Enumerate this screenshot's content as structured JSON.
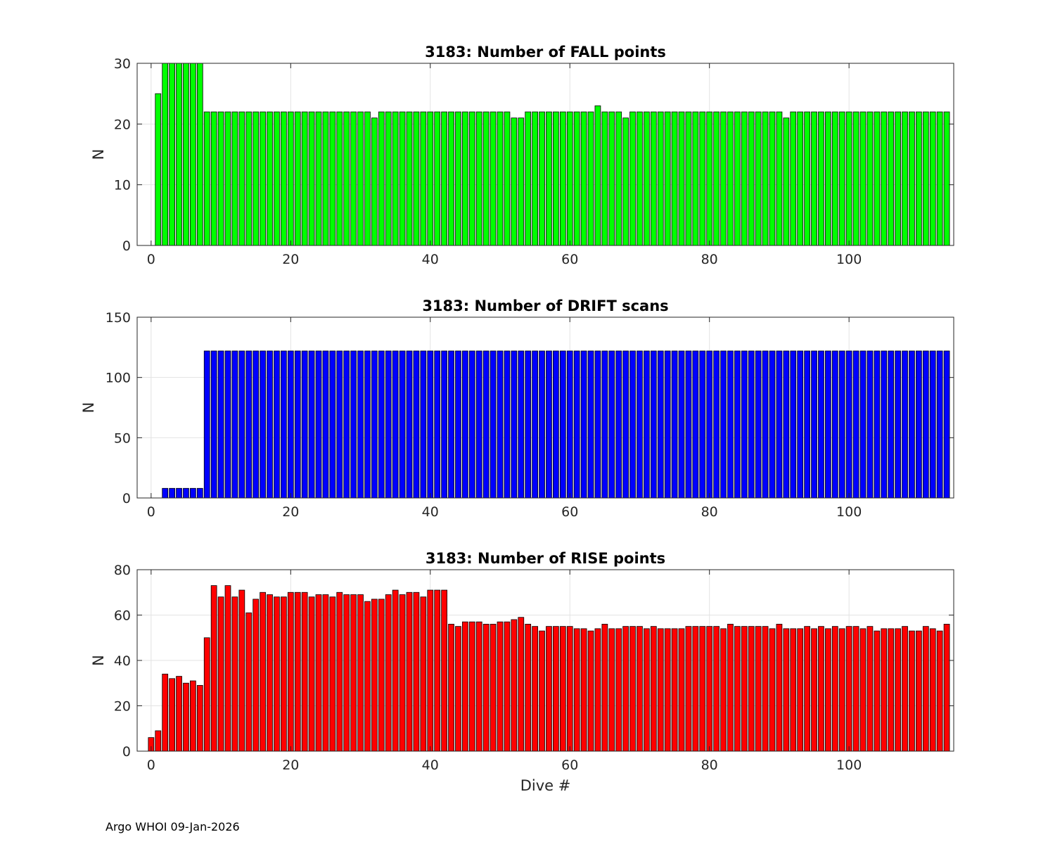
{
  "footer": "Argo WHOI 09-Jan-2026",
  "chart_data": [
    {
      "type": "bar",
      "title": "3183: Number of FALL points",
      "xlabel": "",
      "ylabel": "N",
      "xlim": [
        -2,
        115
      ],
      "ylim": [
        0,
        30
      ],
      "xticks": [
        0,
        20,
        40,
        60,
        80,
        100
      ],
      "yticks": [
        0,
        10,
        20,
        30
      ],
      "grid": true,
      "color": "#00ff00",
      "x_start": 0,
      "values": [
        0,
        25,
        30,
        30,
        30,
        30,
        30,
        30,
        22,
        22,
        22,
        22,
        22,
        22,
        22,
        22,
        22,
        22,
        22,
        22,
        22,
        22,
        22,
        22,
        22,
        22,
        22,
        22,
        22,
        22,
        22,
        22,
        21,
        22,
        22,
        22,
        22,
        22,
        22,
        22,
        22,
        22,
        22,
        22,
        22,
        22,
        22,
        22,
        22,
        22,
        22,
        22,
        21,
        21,
        22,
        22,
        22,
        22,
        22,
        22,
        22,
        22,
        22,
        22,
        23,
        22,
        22,
        22,
        21,
        22,
        22,
        22,
        22,
        22,
        22,
        22,
        22,
        22,
        22,
        22,
        22,
        22,
        22,
        22,
        22,
        22,
        22,
        22,
        22,
        22,
        22,
        21,
        22,
        22,
        22,
        22,
        22,
        22,
        22,
        22,
        22,
        22,
        22,
        22,
        22,
        22,
        22,
        22,
        22,
        22,
        22,
        22,
        22,
        22,
        22
      ]
    },
    {
      "type": "bar",
      "title": "3183: Number of DRIFT scans",
      "xlabel": "",
      "ylabel": "N",
      "xlim": [
        -2,
        115
      ],
      "ylim": [
        0,
        150
      ],
      "xticks": [
        0,
        20,
        40,
        60,
        80,
        100
      ],
      "yticks": [
        0,
        50,
        100,
        150
      ],
      "grid": true,
      "color": "#0000ff",
      "x_start": 0,
      "values": [
        0,
        0,
        8,
        8,
        8,
        8,
        8,
        8,
        122,
        122,
        122,
        122,
        122,
        122,
        122,
        122,
        122,
        122,
        122,
        122,
        122,
        122,
        122,
        122,
        122,
        122,
        122,
        122,
        122,
        122,
        122,
        122,
        122,
        122,
        122,
        122,
        122,
        122,
        122,
        122,
        122,
        122,
        122,
        122,
        122,
        122,
        122,
        122,
        122,
        122,
        122,
        122,
        122,
        122,
        122,
        122,
        122,
        122,
        122,
        122,
        122,
        122,
        122,
        122,
        122,
        122,
        122,
        122,
        122,
        122,
        122,
        122,
        122,
        122,
        122,
        122,
        122,
        122,
        122,
        122,
        122,
        122,
        122,
        122,
        122,
        122,
        122,
        122,
        122,
        122,
        122,
        122,
        122,
        122,
        122,
        122,
        122,
        122,
        122,
        122,
        122,
        122,
        122,
        122,
        122,
        122,
        122,
        122,
        122,
        122,
        122,
        122,
        122,
        122,
        122
      ]
    },
    {
      "type": "bar",
      "title": "3183: Number of RISE points",
      "xlabel": "Dive #",
      "ylabel": "N",
      "xlim": [
        -2,
        115
      ],
      "ylim": [
        0,
        80
      ],
      "xticks": [
        0,
        20,
        40,
        60,
        80,
        100
      ],
      "yticks": [
        0,
        20,
        40,
        60,
        80
      ],
      "grid": true,
      "color": "#ff0000",
      "x_start": 0,
      "values": [
        6,
        9,
        34,
        32,
        33,
        30,
        31,
        29,
        50,
        73,
        68,
        73,
        68,
        71,
        61,
        67,
        70,
        69,
        68,
        68,
        70,
        70,
        70,
        68,
        69,
        69,
        68,
        70,
        69,
        69,
        69,
        66,
        67,
        67,
        69,
        71,
        69,
        70,
        70,
        68,
        71,
        71,
        71,
        56,
        55,
        57,
        57,
        57,
        56,
        56,
        57,
        57,
        58,
        59,
        56,
        55,
        53,
        55,
        55,
        55,
        55,
        54,
        54,
        53,
        54,
        56,
        54,
        54,
        55,
        55,
        55,
        54,
        55,
        54,
        54,
        54,
        54,
        55,
        55,
        55,
        55,
        55,
        54,
        56,
        55,
        55,
        55,
        55,
        55,
        54,
        56,
        54,
        54,
        54,
        55,
        54,
        55,
        54,
        55,
        54,
        55,
        55,
        54,
        55,
        53,
        54,
        54,
        54,
        55,
        53,
        53,
        55,
        54,
        53,
        56
      ]
    }
  ]
}
